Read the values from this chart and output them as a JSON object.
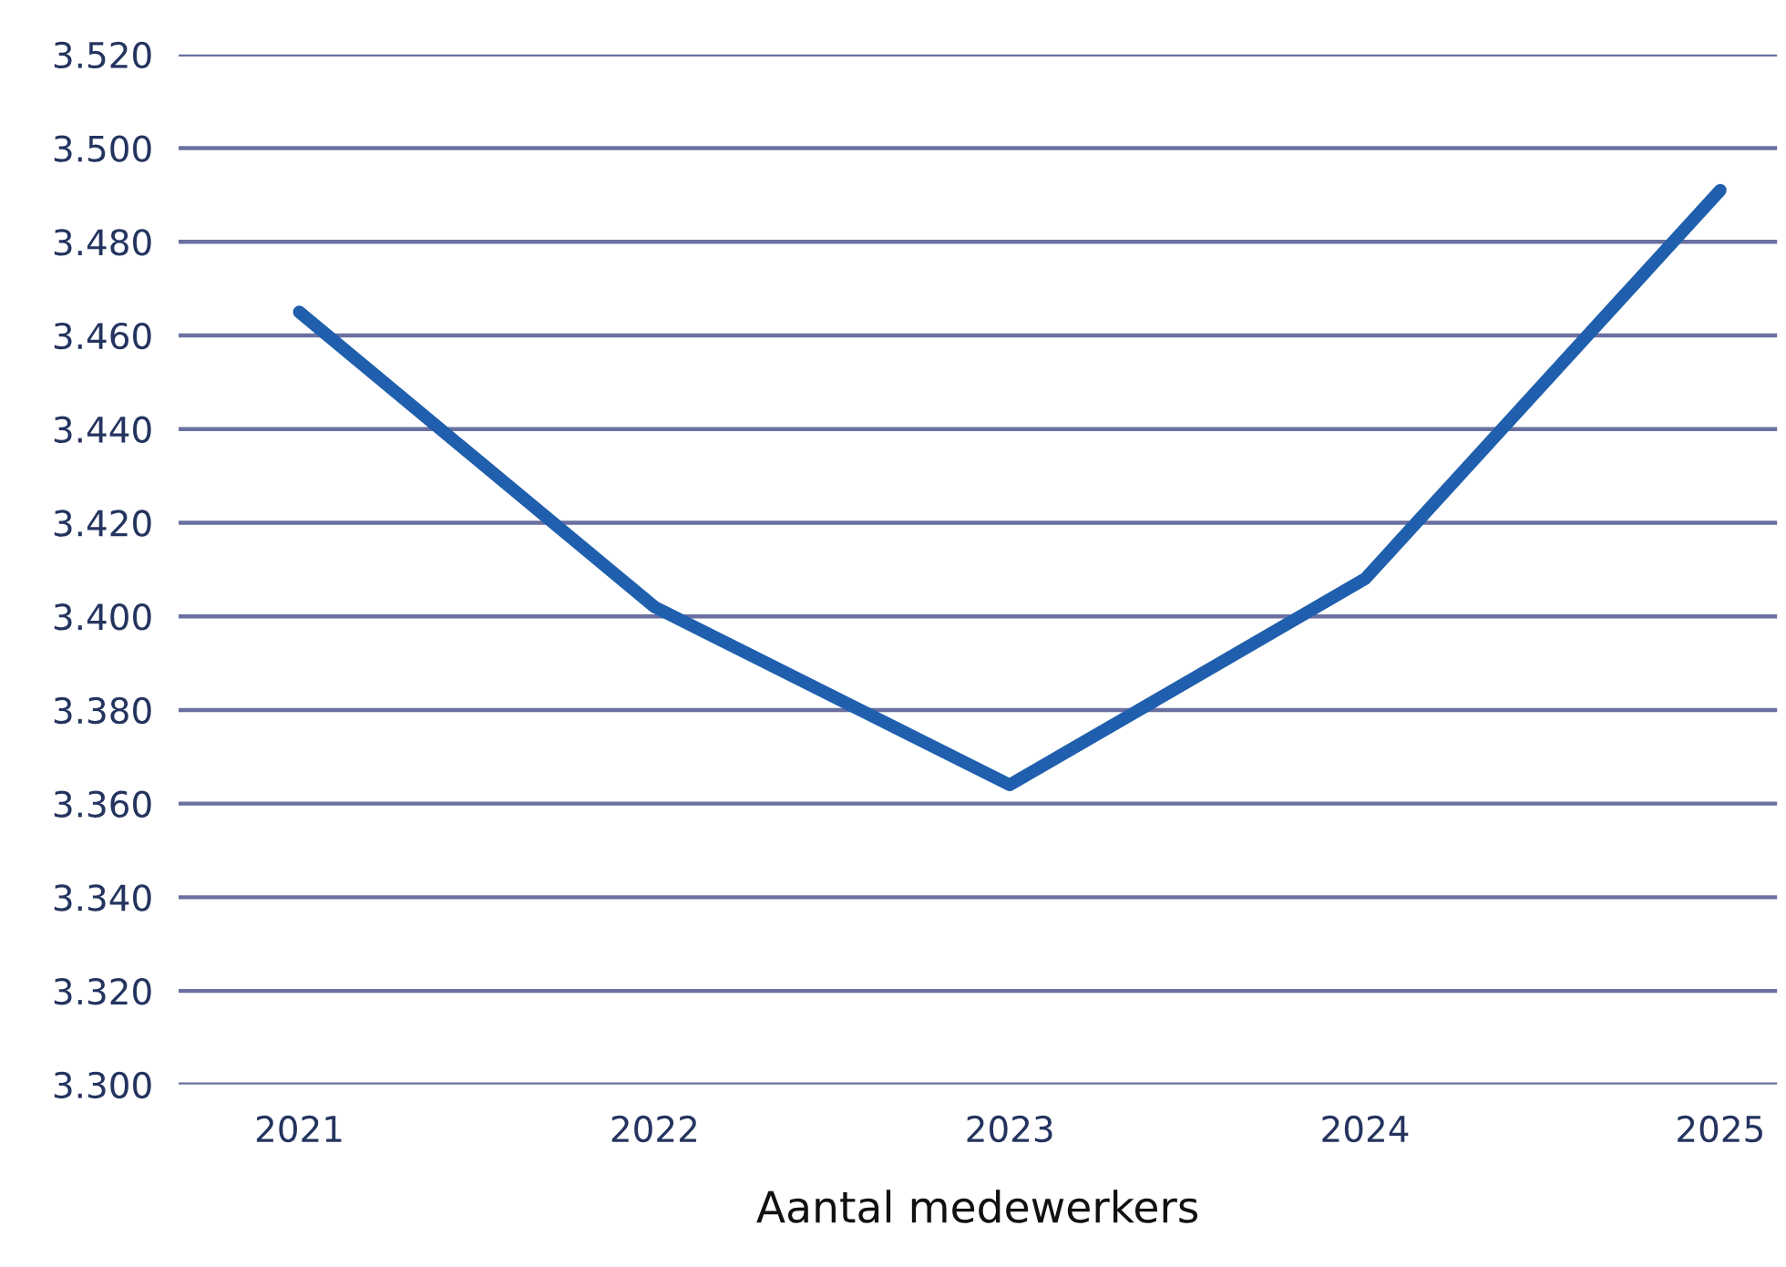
{
  "chart_data": {
    "type": "line",
    "xlabel": "Aantal medewerkers",
    "categories": [
      "2021",
      "2022",
      "2023",
      "2024",
      "2025"
    ],
    "series": [
      {
        "color": "#1f5fad",
        "values": [
          3465,
          3402,
          3364,
          3408,
          3491
        ]
      }
    ],
    "ylim": [
      3300,
      3520
    ],
    "yticks": [
      {
        "value": 3300,
        "label": "3.300"
      },
      {
        "value": 3320,
        "label": "3.320"
      },
      {
        "value": 3340,
        "label": "3.340"
      },
      {
        "value": 3360,
        "label": "3.360"
      },
      {
        "value": 3380,
        "label": "3.380"
      },
      {
        "value": 3400,
        "label": "3.400"
      },
      {
        "value": 3420,
        "label": "3.420"
      },
      {
        "value": 3440,
        "label": "3.440"
      },
      {
        "value": 3460,
        "label": "3.460"
      },
      {
        "value": 3480,
        "label": "3.480"
      },
      {
        "value": 3500,
        "label": "3.500"
      },
      {
        "value": 3520,
        "label": "3.520"
      }
    ],
    "grid": "y",
    "marker": "none",
    "line_style": "solid"
  }
}
